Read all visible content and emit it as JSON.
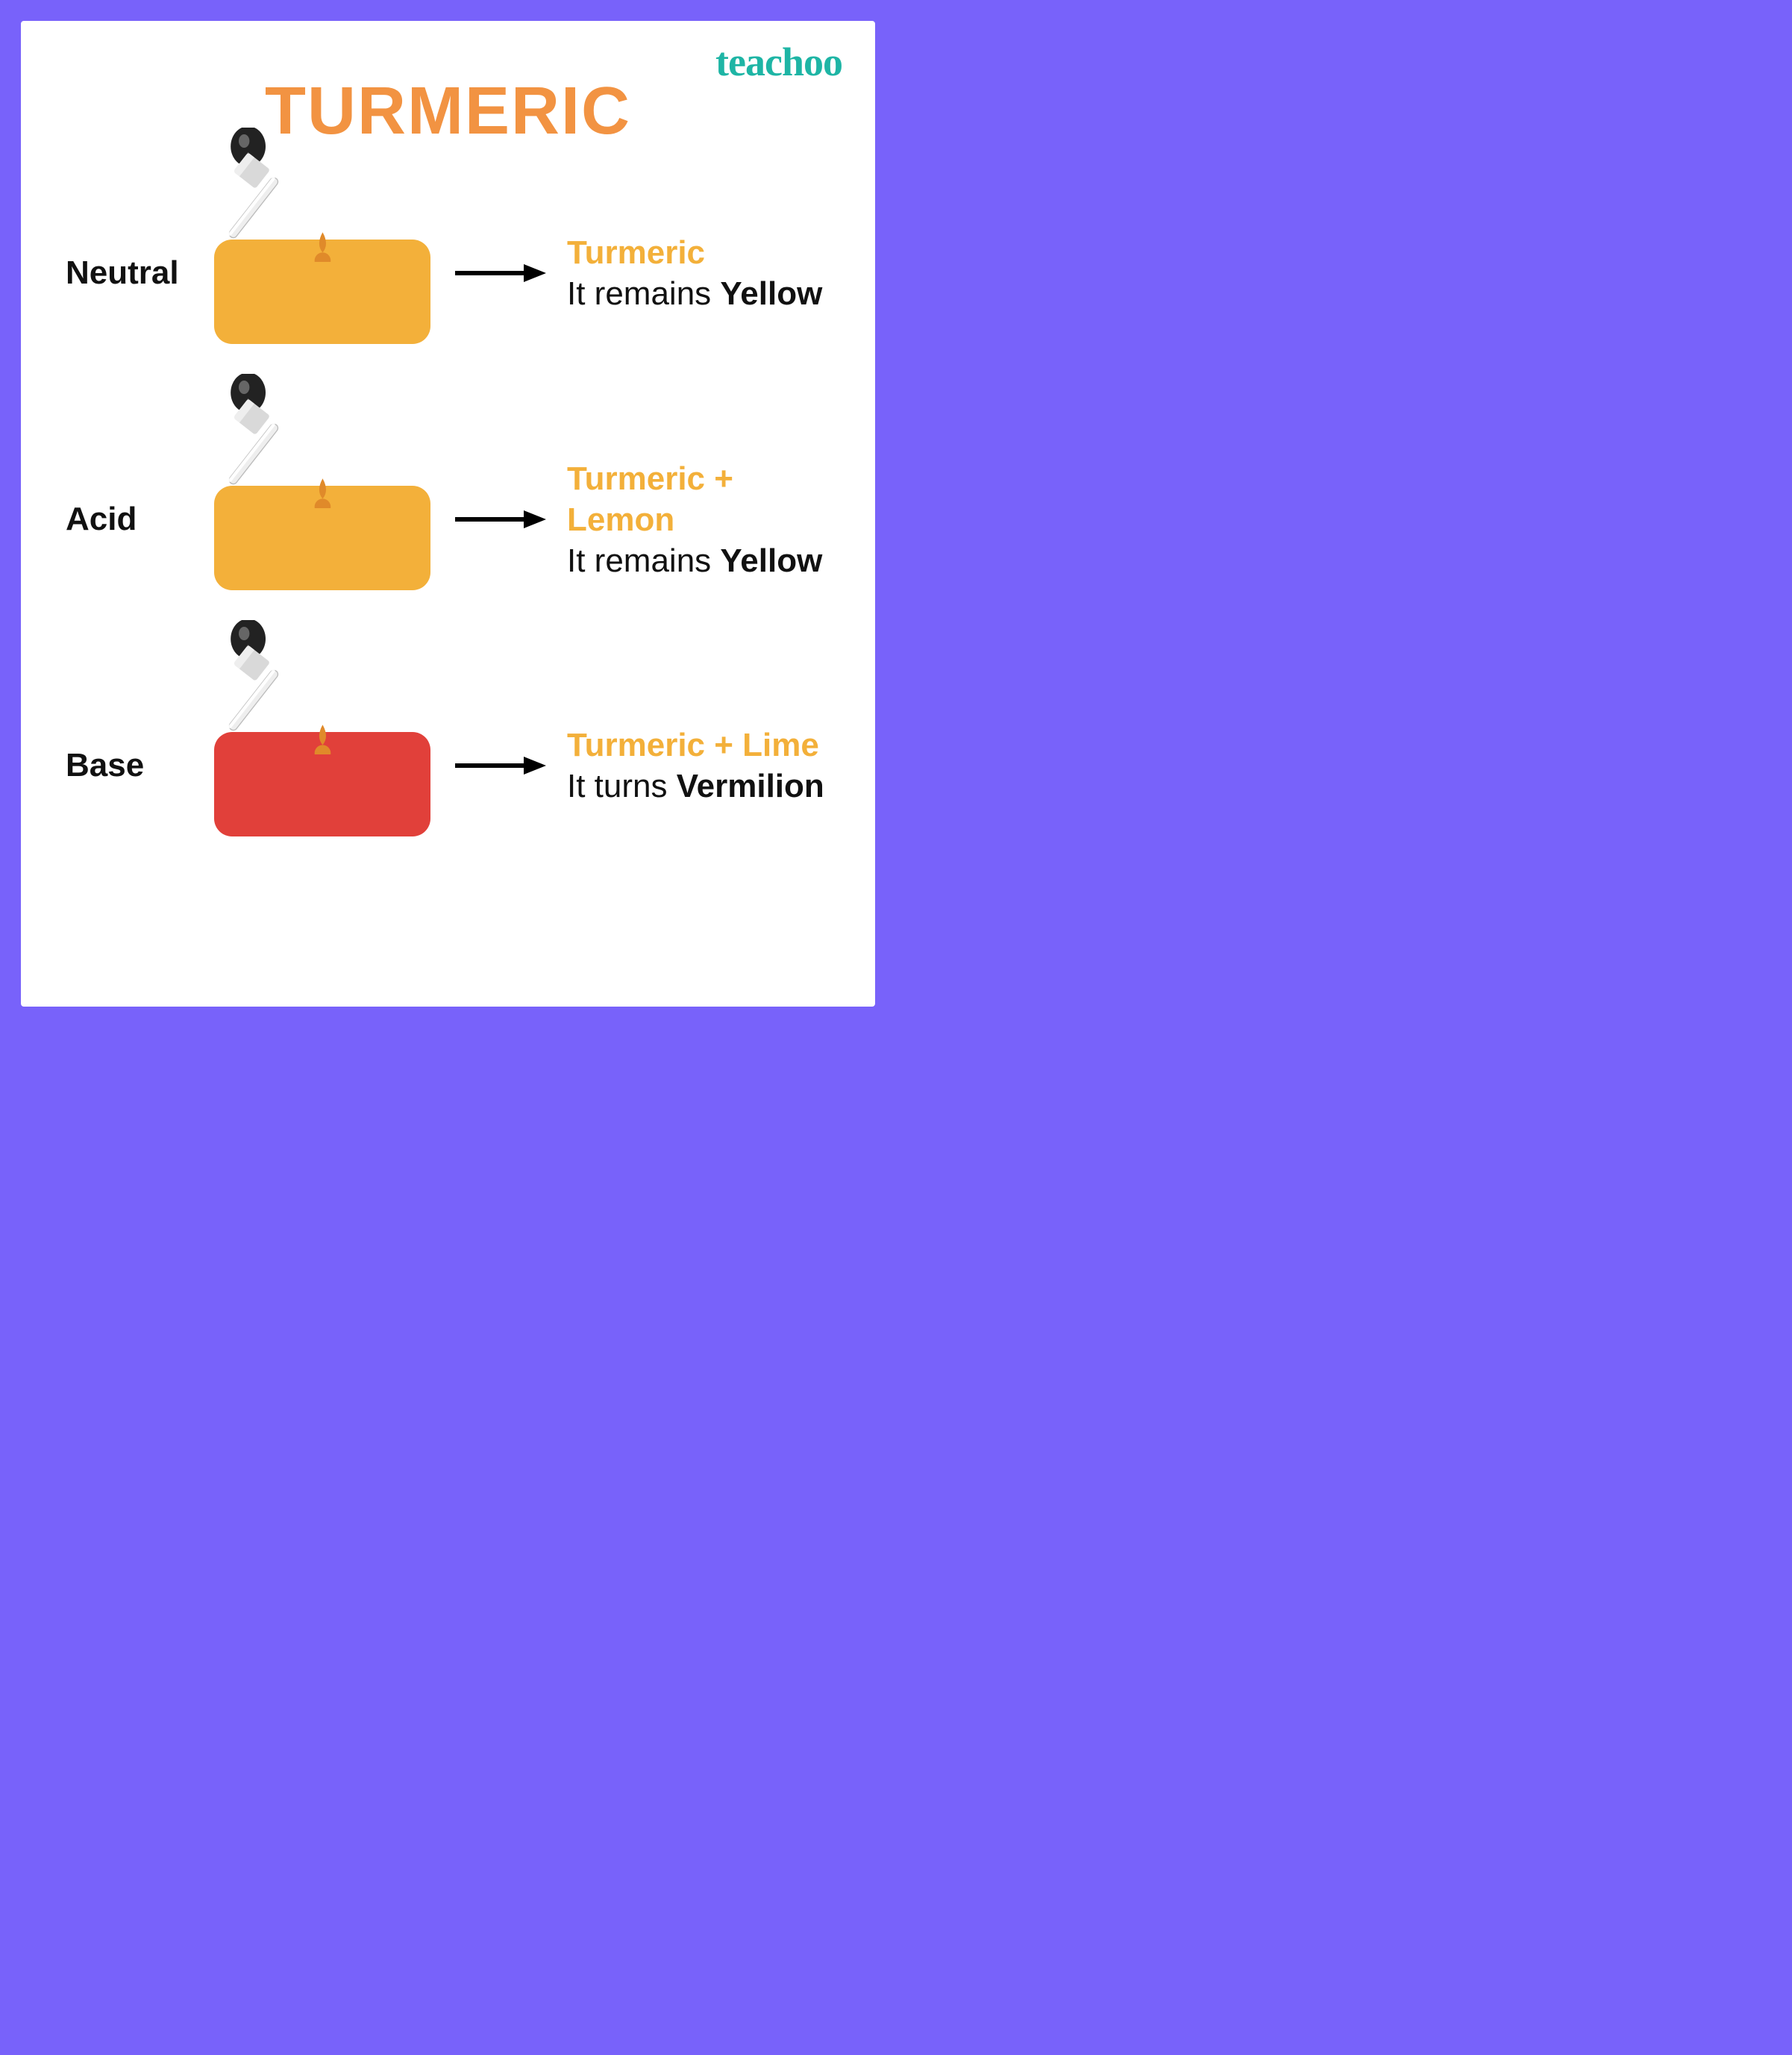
{
  "brand": "teachoo",
  "title": "TURMERIC",
  "colors": {
    "page_border": "#7862fa",
    "card_bg": "#ffffff",
    "title_color": "#f29342",
    "brand_color": "#1eb5a5",
    "text_color": "#111111",
    "accent_title_color": "#f3b03a",
    "arrow_color": "#000000",
    "swatch_yellow": "#f3b03a",
    "swatch_red": "#e1403a",
    "drop_color": "#e08a2a"
  },
  "typography": {
    "title_fontsize": 90,
    "label_fontsize": 44,
    "result_fontsize": 44,
    "brand_fontsize": 54
  },
  "layout": {
    "card_padding": 40,
    "row_gap": 140,
    "swatch_width": 290,
    "swatch_height": 140,
    "swatch_radius": 24
  },
  "rows": [
    {
      "label": "Neutral",
      "swatch_color": "#f3b03a",
      "result_title": "Turmeric",
      "result_title_color": "#f3b03a",
      "desc_prefix": "It remains ",
      "desc_bold": "Yellow"
    },
    {
      "label": "Acid",
      "swatch_color": "#f3b03a",
      "result_title": "Turmeric + Lemon",
      "result_title_color": "#f3b03a",
      "desc_prefix": "It remains ",
      "desc_bold": "Yellow"
    },
    {
      "label": "Base",
      "swatch_color": "#e1403a",
      "result_title": "Turmeric + Lime",
      "result_title_color": "#f3b03a",
      "desc_prefix": "It turns ",
      "desc_bold": "Vermilion"
    }
  ]
}
